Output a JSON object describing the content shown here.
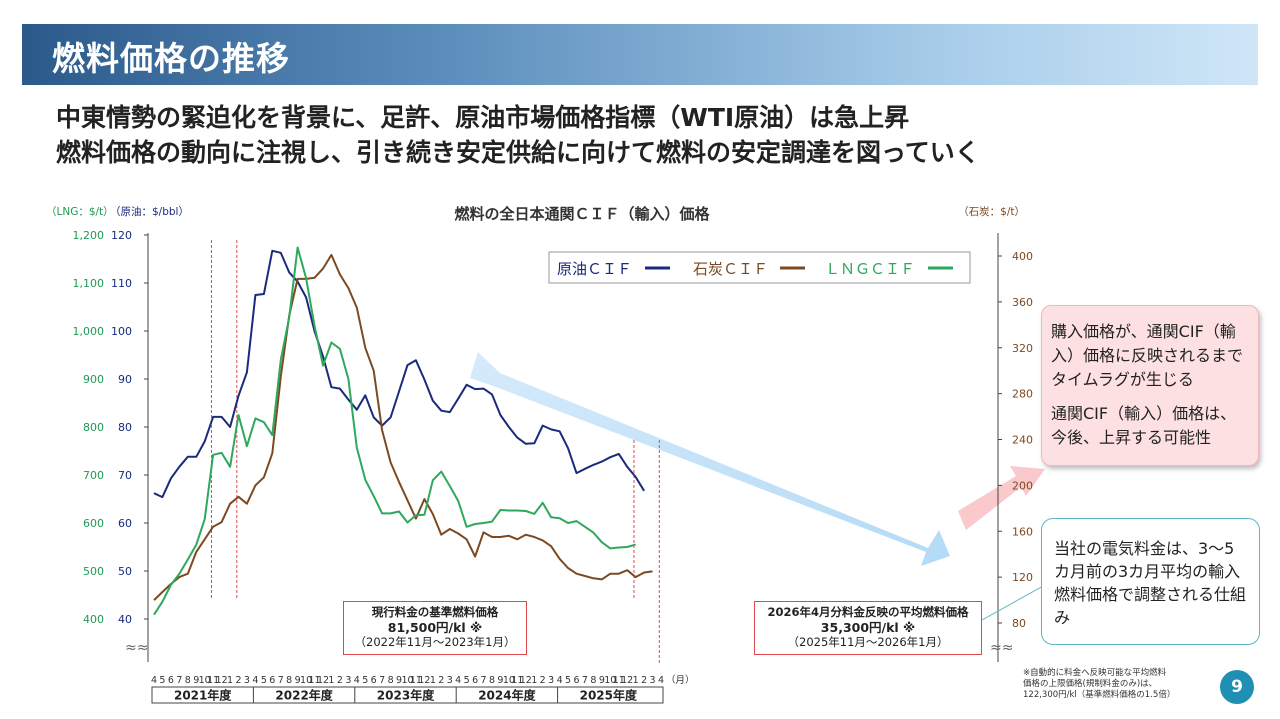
{
  "header": {
    "title": "燃料価格の推移",
    "lead_line1": "中東情勢の緊迫化を背景に、足許、原油市場価格指標（WTI原油）は急上昇",
    "lead_line2": "燃料価格の動向に注視し、引き続き安定供給に向けて燃料の安定調達を図っていく"
  },
  "chart_data": {
    "type": "line",
    "title": "燃料の全日本通関ＣＩＦ（輸入）価格",
    "left_axis_label_lng": "（LNG：$/t）",
    "left_axis_label_oil": "（原油：$/bbl）",
    "right_axis_label": "（石炭：$/t）",
    "lng_ticks": [
      "1,200",
      "1,100",
      "1,000",
      "900",
      "800",
      "700",
      "600",
      "500",
      "400"
    ],
    "oil_ticks": [
      120,
      110,
      100,
      90,
      80,
      70,
      60,
      50,
      40
    ],
    "coal_ticks": [
      400,
      360,
      320,
      280,
      240,
      200,
      160,
      120,
      80
    ],
    "oil_ylim": [
      40,
      120
    ],
    "coal_ylim": [
      80,
      400
    ],
    "month_labels": [
      "4",
      "5",
      "6",
      "7",
      "8",
      "9",
      "10",
      "11",
      "12",
      "1",
      "2",
      "3",
      "4",
      "5",
      "6",
      "7",
      "8",
      "9",
      "10",
      "11",
      "12",
      "1",
      "2",
      "3",
      "4",
      "5",
      "6",
      "7",
      "8",
      "9",
      "10",
      "11",
      "12",
      "1",
      "2",
      "3",
      "4",
      "5",
      "6",
      "7",
      "8",
      "9",
      "10",
      "11",
      "12",
      "1",
      "2",
      "3",
      "4",
      "5",
      "6",
      "7",
      "8",
      "9",
      "10",
      "11",
      "12",
      "1",
      "2",
      "3",
      "4"
    ],
    "month_unit": "（月）",
    "fiscal_years": [
      "2021年度",
      "2022年度",
      "2023年度",
      "2024年度",
      "2025年度"
    ],
    "legend": [
      "原油ＣＩＦ",
      "石炭ＣＩＦ",
      "ＬＮＧＣＩＦ"
    ],
    "series": [
      {
        "name": "原油ＣＩＦ",
        "axis": "oil",
        "color": "#1a2a7c",
        "values": [
          66.2,
          65.4,
          69.3,
          71.7,
          73.8,
          73.8,
          77,
          82.1,
          82.1,
          80,
          86.5,
          91.4,
          107.5,
          107.7,
          116.7,
          116.3,
          112.2,
          110.3,
          107,
          100,
          94.7,
          88.3,
          88,
          85.7,
          83.6,
          86.6,
          82,
          80.3,
          82,
          87.4,
          92.9,
          93.9,
          89.9,
          85.5,
          83.4,
          83.1,
          85.9,
          88.8,
          87.9,
          88,
          86.8,
          82.5,
          80,
          77.8,
          76.5,
          76.6,
          80.3,
          79.5,
          79.1,
          75.6,
          70.4,
          71.3,
          72.1,
          72.8,
          73.7,
          74.4,
          71.7,
          69.6,
          66.7
        ]
      },
      {
        "name": "石炭ＣＩＦ",
        "axis": "coal",
        "color": "#7b4a22",
        "values": [
          100,
          107,
          114,
          120,
          123,
          142,
          153,
          164,
          168,
          184,
          190,
          184,
          200,
          207,
          228,
          295,
          348,
          380,
          380,
          381,
          389,
          401,
          384,
          372,
          355,
          320,
          300,
          248,
          220,
          203,
          187,
          171,
          188,
          175,
          157,
          162,
          158,
          153,
          138,
          159,
          155,
          155,
          156,
          153,
          157,
          155,
          152,
          147,
          136,
          128,
          123,
          121,
          119,
          118,
          123,
          123,
          126,
          120,
          124,
          125
        ]
      },
      {
        "name": "ＬＮＧＣＩＦ",
        "axis": "lng",
        "color": "#2ea85c",
        "values": [
          409,
          436,
          471,
          494,
          524,
          555,
          608,
          742,
          746,
          717,
          825,
          760,
          818,
          810,
          783,
          940,
          1028,
          1174,
          1110,
          1011,
          928,
          976,
          963,
          900,
          757,
          690,
          656,
          620,
          620,
          624,
          601,
          616,
          617,
          689,
          707,
          677,
          646,
          592,
          598,
          600,
          603,
          627,
          626,
          626,
          625,
          619,
          642,
          612,
          610,
          600,
          604,
          592,
          580,
          560,
          547,
          549,
          550,
          555
        ]
      }
    ],
    "arrow_note": "",
    "box1_title": "現行料金の基準燃料価格",
    "box1_value": "81,500円/kl ※",
    "box1_period": "（2022年11月～2023年1月）",
    "box2_title": "2026年4月分料金反映の平均燃料価格",
    "box2_value": "35,300円/kl ※",
    "box2_period": "（2025年11月～2026年1月）"
  },
  "callouts": {
    "pink_line1": "購入価格が、通関CIF（輸入）価格に反映されるまでタイムラグが生じる",
    "pink_line2": "通関CIF（輸入）価格は、今後、上昇する可能性",
    "blue_text": "当社の電気料金は、3～5カ月前の3カ月平均の輸入燃料価格で調整される仕組み"
  },
  "footnote": {
    "line1": "※自動的に料金へ反映可能な平均燃料",
    "line2": "価格の上限価格(規制料金のみ)は、",
    "line3": "122,300円/kl（基準燃料価格の1.5倍）"
  },
  "page_number": "9",
  "colors": {
    "oil": "#1a2a7c",
    "coal": "#7b4a22",
    "lng": "#2ea85c",
    "accent_red": "#e0474c"
  }
}
